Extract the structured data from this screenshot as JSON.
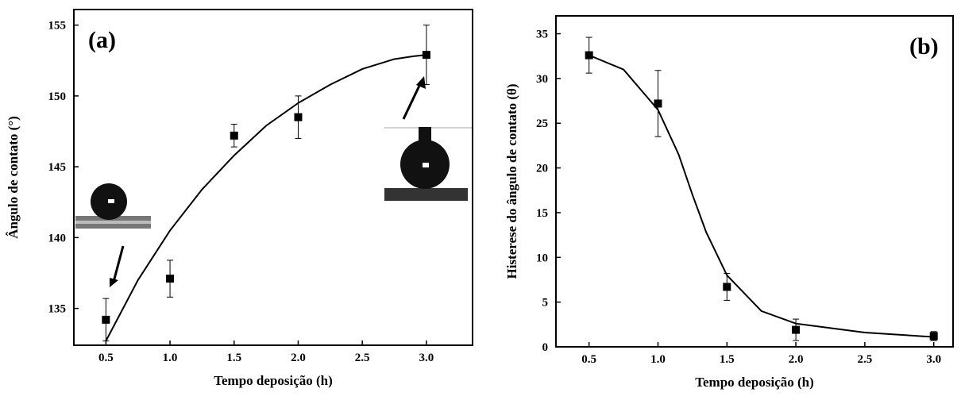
{
  "chart_data": [
    {
      "type": "scatter",
      "annotation": "(a)",
      "xlabel": "Tempo deposição (h)",
      "ylabel": "Ângulo de contato (°)",
      "x": [
        0.5,
        1,
        1.5,
        2,
        3
      ],
      "values": [
        134.2,
        137.1,
        147.2,
        148.5,
        152.9
      ],
      "errors": [
        1.5,
        1.3,
        0.8,
        1.5,
        2.1
      ],
      "fit": {
        "x": [
          0.5,
          0.75,
          1,
          1.25,
          1.5,
          1.75,
          2,
          2.25,
          2.5,
          2.75,
          2.9,
          3
        ],
        "values": [
          132.7,
          137,
          140.5,
          143.4,
          145.8,
          147.9,
          149.5,
          150.8,
          151.9,
          152.6,
          152.8,
          152.9
        ]
      },
      "xlim": [
        0.25,
        3.36
      ],
      "ylim": [
        132.4,
        156.1
      ],
      "xticks": [
        0.5,
        {
          "value": 1,
          "label": "1.0"
        },
        1.5,
        {
          "value": 2,
          "label": "2.0"
        },
        2.5,
        {
          "value": 3,
          "label": "3.0"
        }
      ],
      "yticks": [
        135,
        140,
        145,
        150,
        155
      ],
      "color": "#000000"
    },
    {
      "type": "scatter",
      "annotation": "(b)",
      "xlabel": "Tempo deposição (h)",
      "ylabel": "Histerese do ângulo de contato (θ)",
      "x": [
        0.5,
        1,
        1.5,
        2,
        3
      ],
      "values": [
        32.6,
        27.2,
        6.7,
        1.9,
        1.2
      ],
      "errors": [
        2,
        3.7,
        1.5,
        1.2,
        0.5
      ],
      "fit": {
        "x": [
          0.5,
          0.75,
          1,
          1.15,
          1.25,
          1.35,
          1.5,
          1.75,
          2,
          2.5,
          3
        ],
        "values": [
          32.6,
          31,
          26.5,
          21.5,
          17,
          12.8,
          8,
          4,
          2.6,
          1.6,
          1.1
        ]
      },
      "xlim": [
        0.26,
        3.14
      ],
      "ylim": [
        0,
        37
      ],
      "xticks": [
        0.5,
        {
          "value": 1,
          "label": "1.0"
        },
        1.5,
        {
          "value": 2,
          "label": "2.0"
        },
        2.5,
        {
          "value": 3,
          "label": "3.0"
        }
      ],
      "yticks": [
        0,
        5,
        10,
        15,
        20,
        25,
        30,
        35
      ],
      "color": "#000000"
    }
  ]
}
